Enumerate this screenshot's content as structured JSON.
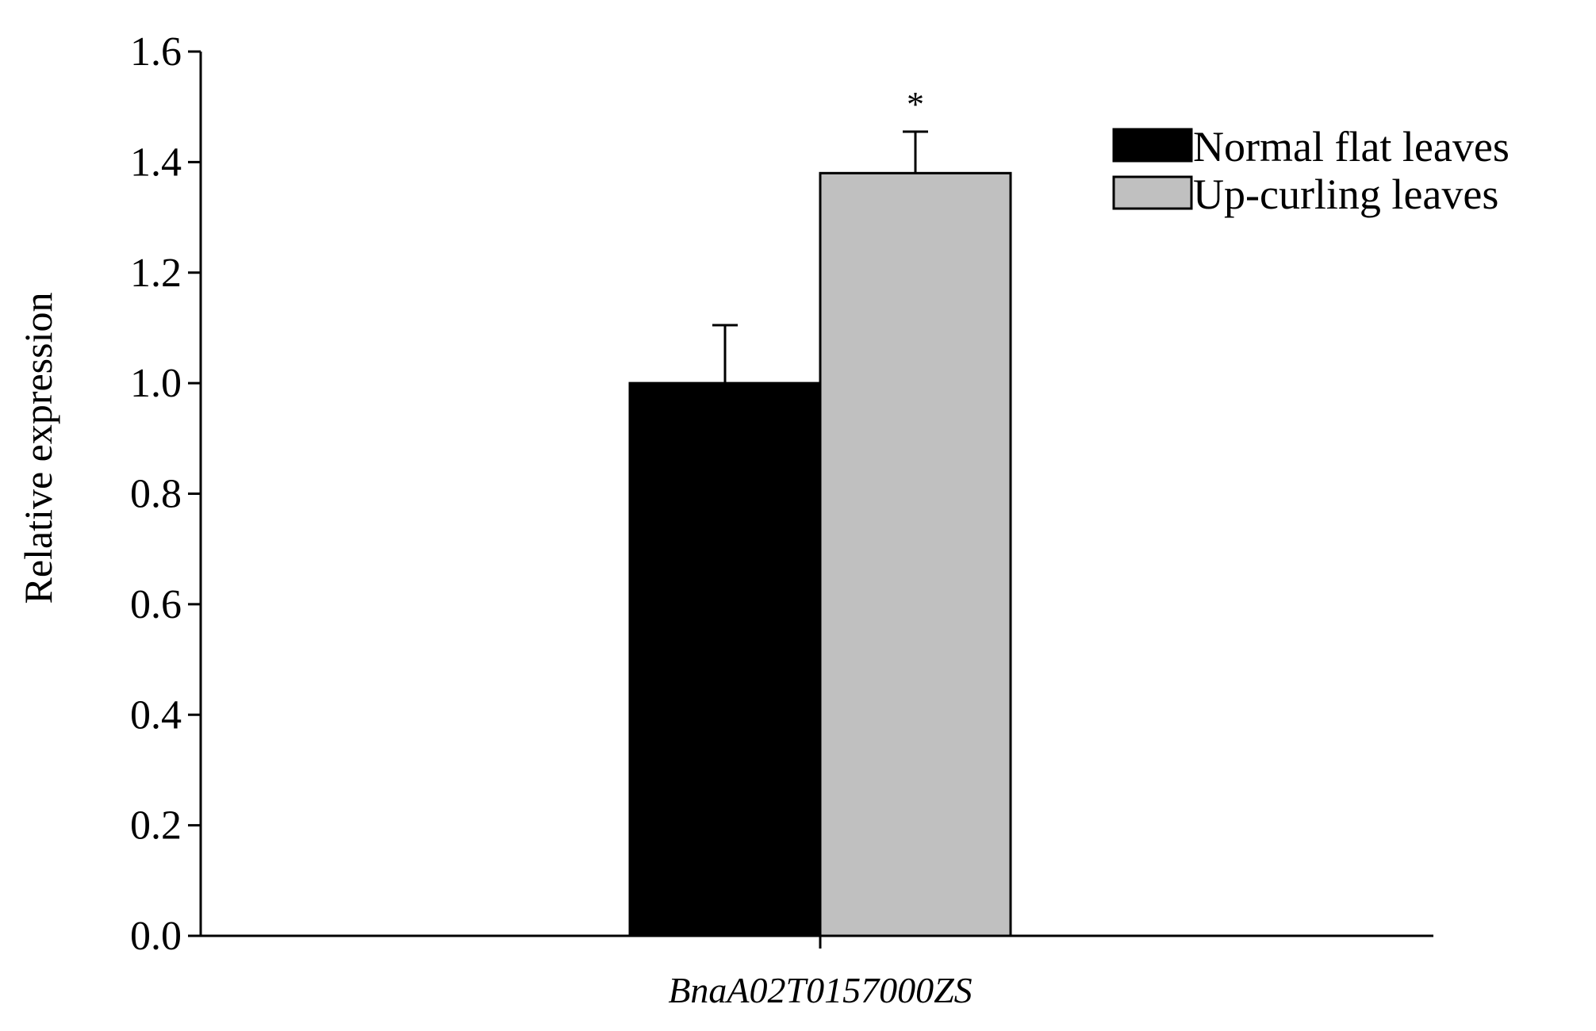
{
  "chart_data": {
    "type": "bar",
    "categories": [
      "BnaA02T0157000ZS"
    ],
    "series": [
      {
        "name": "Normal flat leaves",
        "values": [
          1.0
        ],
        "errors": [
          0.105
        ],
        "color": "#000000"
      },
      {
        "name": "Up-curling leaves",
        "values": [
          1.38
        ],
        "errors": [
          0.075
        ],
        "color": "#c0c0c0"
      }
    ],
    "significance": [
      "",
      "*"
    ],
    "ylabel": "Relative expression",
    "xlabel": "",
    "ylim": [
      0,
      1.6
    ],
    "yticks": [
      "0.0",
      "0.2",
      "0.4",
      "0.6",
      "0.8",
      "1.0",
      "1.2",
      "1.4",
      "1.6"
    ],
    "legend_position": "top-right",
    "grid": false
  }
}
